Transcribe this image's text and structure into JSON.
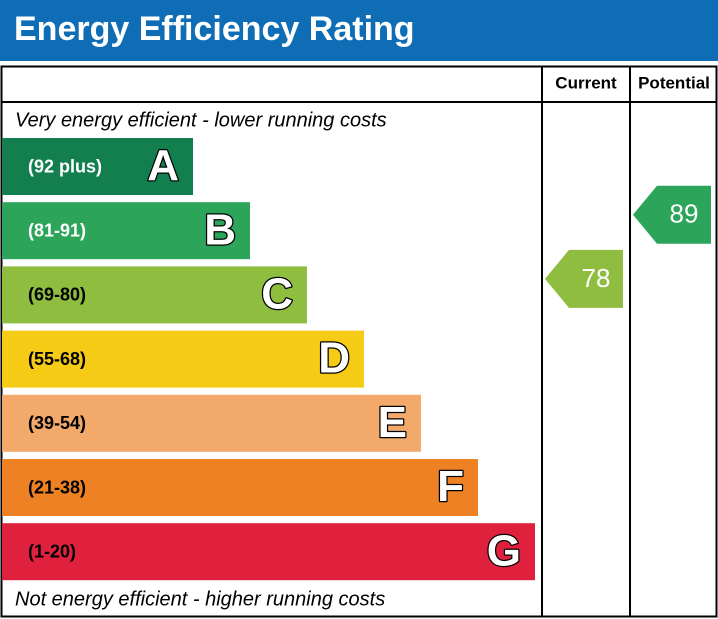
{
  "title": "Energy Efficiency Rating",
  "headers": {
    "current": "Current",
    "potential": "Potential"
  },
  "top_note": "Very energy efficient - lower running costs",
  "bottom_note": "Not energy efficient - higher running costs",
  "bands": [
    {
      "range": "(92 plus)",
      "letter": "A",
      "color": "#137f4f",
      "text_color": "#ffffff"
    },
    {
      "range": "(81-91)",
      "letter": "B",
      "color": "#2ca55a",
      "text_color": "#ffffff"
    },
    {
      "range": "(69-80)",
      "letter": "C",
      "color": "#8fbd40",
      "text_color": "#000000"
    },
    {
      "range": "(55-68)",
      "letter": "D",
      "color": "#f5cb16",
      "text_color": "#000000"
    },
    {
      "range": "(39-54)",
      "letter": "E",
      "color": "#f2a96a",
      "text_color": "#000000"
    },
    {
      "range": "(21-38)",
      "letter": "F",
      "color": "#ee8124",
      "text_color": "#000000"
    },
    {
      "range": "(1-20)",
      "letter": "G",
      "color": "#e0213d",
      "text_color": "#000000"
    }
  ],
  "current": 78,
  "potential": 89
}
